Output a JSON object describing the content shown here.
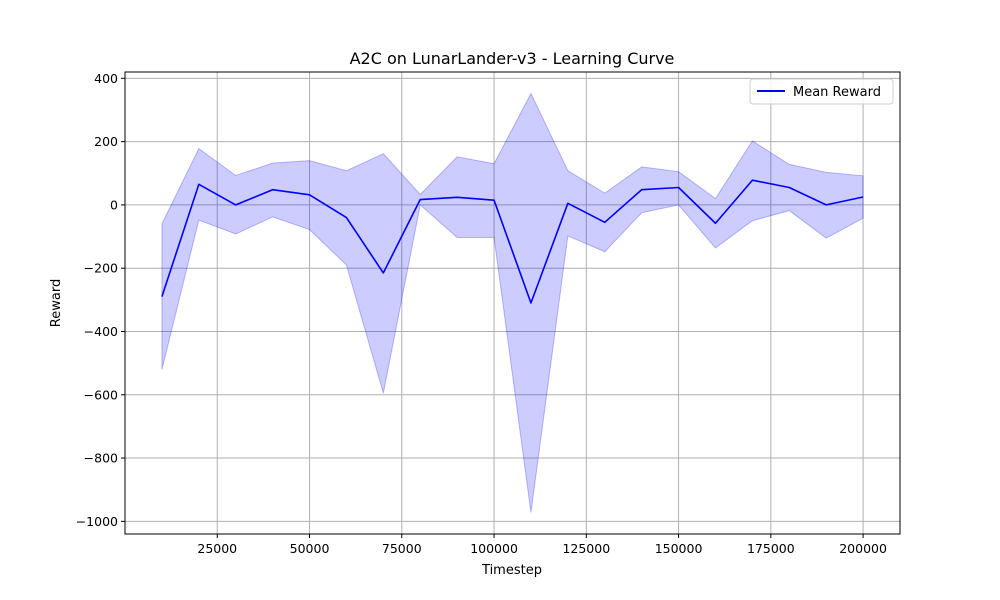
{
  "chart_data": {
    "type": "line",
    "title": "A2C on LunarLander-v3 - Learning Curve",
    "xlabel": "Timestep",
    "ylabel": "Reward",
    "xlim": [
      0,
      210000
    ],
    "ylim": [
      -1040,
      420
    ],
    "x_ticks": [
      25000,
      50000,
      75000,
      100000,
      125000,
      150000,
      175000,
      200000
    ],
    "y_ticks": [
      400,
      200,
      0,
      -200,
      -400,
      -600,
      -800,
      -1000
    ],
    "grid": true,
    "legend": {
      "position": "top-right",
      "entries": [
        "Mean Reward"
      ]
    },
    "x": [
      10000,
      20000,
      30000,
      40000,
      50000,
      60000,
      70000,
      80000,
      90000,
      100000,
      110000,
      120000,
      130000,
      140000,
      150000,
      160000,
      170000,
      180000,
      190000,
      200000
    ],
    "series": [
      {
        "name": "Mean Reward",
        "color": "#0000ff",
        "fill_color": "#0000ff",
        "values": [
          -290,
          65,
          0,
          48,
          32,
          -40,
          -215,
          17,
          24,
          15,
          -310,
          5,
          -55,
          48,
          55,
          -58,
          78,
          55,
          0,
          25
        ],
        "upper": [
          -60,
          178,
          93,
          132,
          140,
          108,
          162,
          33,
          152,
          130,
          352,
          108,
          37,
          120,
          105,
          20,
          202,
          128,
          103,
          92
        ],
        "lower": [
          -520,
          -48,
          -92,
          -38,
          -78,
          -190,
          -595,
          0,
          -103,
          -103,
          -972,
          -98,
          -148,
          -25,
          0,
          -136,
          -50,
          -18,
          -105,
          -42
        ]
      }
    ]
  }
}
